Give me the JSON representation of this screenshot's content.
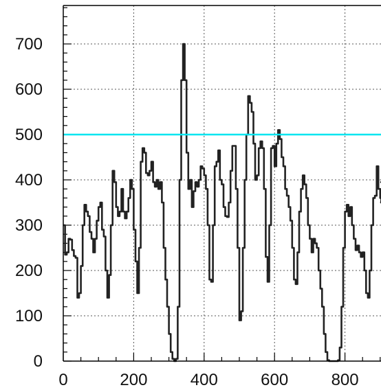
{
  "chart_data": {
    "type": "line",
    "title": "",
    "xlabel": "",
    "ylabel": "",
    "xlim": [
      0,
      920
    ],
    "ylim": [
      0,
      780
    ],
    "x_ticks": [
      0,
      200,
      400,
      600,
      800
    ],
    "x_tick_labels": [
      "0",
      "200",
      "400",
      "600",
      "800"
    ],
    "y_ticks": [
      0,
      100,
      200,
      300,
      400,
      500,
      600,
      700
    ],
    "y_tick_labels": [
      "0",
      "100",
      "200",
      "300",
      "400",
      "500",
      "600",
      "700"
    ],
    "grid": true,
    "series": [
      {
        "color": "#222222",
        "style": "step",
        "points": [
          [
            0,
            300
          ],
          [
            5,
            235
          ],
          [
            10,
            240
          ],
          [
            15,
            270
          ],
          [
            20,
            268
          ],
          [
            25,
            245
          ],
          [
            30,
            232
          ],
          [
            35,
            228
          ],
          [
            40,
            140
          ],
          [
            45,
            150
          ],
          [
            50,
            210
          ],
          [
            55,
            300
          ],
          [
            60,
            345
          ],
          [
            65,
            330
          ],
          [
            70,
            320
          ],
          [
            75,
            285
          ],
          [
            80,
            270
          ],
          [
            85,
            240
          ],
          [
            90,
            270
          ],
          [
            95,
            310
          ],
          [
            100,
            340
          ],
          [
            105,
            350
          ],
          [
            110,
            290
          ],
          [
            115,
            275
          ],
          [
            120,
            200
          ],
          [
            125,
            140
          ],
          [
            130,
            190
          ],
          [
            135,
            300
          ],
          [
            140,
            420
          ],
          [
            145,
            395
          ],
          [
            150,
            340
          ],
          [
            155,
            320
          ],
          [
            160,
            330
          ],
          [
            165,
            380
          ],
          [
            170,
            330
          ],
          [
            175,
            315
          ],
          [
            180,
            330
          ],
          [
            185,
            360
          ],
          [
            190,
            400
          ],
          [
            195,
            380
          ],
          [
            200,
            290
          ],
          [
            205,
            220
          ],
          [
            210,
            150
          ],
          [
            215,
            250
          ],
          [
            220,
            440
          ],
          [
            225,
            470
          ],
          [
            230,
            460
          ],
          [
            235,
            415
          ],
          [
            240,
            410
          ],
          [
            245,
            420
          ],
          [
            250,
            440
          ],
          [
            255,
            395
          ],
          [
            260,
            385
          ],
          [
            265,
            400
          ],
          [
            270,
            380
          ],
          [
            275,
            395
          ],
          [
            280,
            350
          ],
          [
            285,
            250
          ],
          [
            290,
            180
          ],
          [
            295,
            120
          ],
          [
            300,
            60
          ],
          [
            305,
            20
          ],
          [
            310,
            5
          ],
          [
            315,
            0
          ],
          [
            320,
            5
          ],
          [
            325,
            120
          ],
          [
            330,
            400
          ],
          [
            335,
            620
          ],
          [
            340,
            700
          ],
          [
            345,
            620
          ],
          [
            350,
            460
          ],
          [
            355,
            380
          ],
          [
            360,
            400
          ],
          [
            365,
            340
          ],
          [
            370,
            375
          ],
          [
            375,
            395
          ],
          [
            380,
            385
          ],
          [
            385,
            400
          ],
          [
            390,
            430
          ],
          [
            395,
            425
          ],
          [
            400,
            410
          ],
          [
            405,
            380
          ],
          [
            410,
            300
          ],
          [
            415,
            180
          ],
          [
            420,
            175
          ],
          [
            425,
            300
          ],
          [
            430,
            430
          ],
          [
            435,
            440
          ],
          [
            440,
            465
          ],
          [
            445,
            400
          ],
          [
            450,
            390
          ],
          [
            455,
            340
          ],
          [
            460,
            320
          ],
          [
            465,
            318
          ],
          [
            470,
            350
          ],
          [
            475,
            420
          ],
          [
            480,
            475
          ],
          [
            485,
            475
          ],
          [
            490,
            380
          ],
          [
            495,
            250
          ],
          [
            500,
            90
          ],
          [
            505,
            110
          ],
          [
            510,
            250
          ],
          [
            515,
            400
          ],
          [
            520,
            500
          ],
          [
            525,
            585
          ],
          [
            530,
            570
          ],
          [
            535,
            550
          ],
          [
            540,
            480
          ],
          [
            545,
            400
          ],
          [
            550,
            410
          ],
          [
            555,
            470
          ],
          [
            560,
            485
          ],
          [
            565,
            470
          ],
          [
            570,
            380
          ],
          [
            575,
            230
          ],
          [
            580,
            175
          ],
          [
            585,
            300
          ],
          [
            590,
            470
          ],
          [
            595,
            475
          ],
          [
            600,
            430
          ],
          [
            605,
            480
          ],
          [
            610,
            510
          ],
          [
            615,
            490
          ],
          [
            620,
            450
          ],
          [
            625,
            430
          ],
          [
            630,
            380
          ],
          [
            635,
            365
          ],
          [
            640,
            340
          ],
          [
            645,
            310
          ],
          [
            650,
            250
          ],
          [
            655,
            180
          ],
          [
            660,
            170
          ],
          [
            665,
            240
          ],
          [
            670,
            330
          ],
          [
            675,
            380
          ],
          [
            680,
            410
          ],
          [
            685,
            390
          ],
          [
            690,
            360
          ],
          [
            695,
            300
          ],
          [
            700,
            270
          ],
          [
            705,
            240
          ],
          [
            710,
            270
          ],
          [
            715,
            260
          ],
          [
            720,
            250
          ],
          [
            725,
            200
          ],
          [
            730,
            160
          ],
          [
            735,
            120
          ],
          [
            740,
            60
          ],
          [
            745,
            20
          ],
          [
            750,
            2
          ],
          [
            755,
            0
          ],
          [
            760,
            0
          ],
          [
            765,
            0
          ],
          [
            770,
            0
          ],
          [
            775,
            0
          ],
          [
            780,
            2
          ],
          [
            785,
            30
          ],
          [
            790,
            120
          ],
          [
            795,
            250
          ],
          [
            800,
            330
          ],
          [
            805,
            345
          ],
          [
            810,
            320
          ],
          [
            815,
            340
          ],
          [
            820,
            300
          ],
          [
            825,
            270
          ],
          [
            830,
            245
          ],
          [
            835,
            255
          ],
          [
            840,
            240
          ],
          [
            845,
            230
          ],
          [
            850,
            240
          ],
          [
            855,
            200
          ],
          [
            860,
            150
          ],
          [
            865,
            140
          ],
          [
            870,
            200
          ],
          [
            875,
            300
          ],
          [
            880,
            360
          ],
          [
            885,
            365
          ],
          [
            890,
            430
          ],
          [
            895,
            380
          ],
          [
            900,
            360
          ],
          [
            905,
            350
          ],
          [
            910,
            395
          ],
          [
            915,
            395
          ]
        ]
      }
    ],
    "reference_lines": [
      {
        "axis": "y",
        "value": 500,
        "color": "#00e5f0"
      }
    ]
  }
}
